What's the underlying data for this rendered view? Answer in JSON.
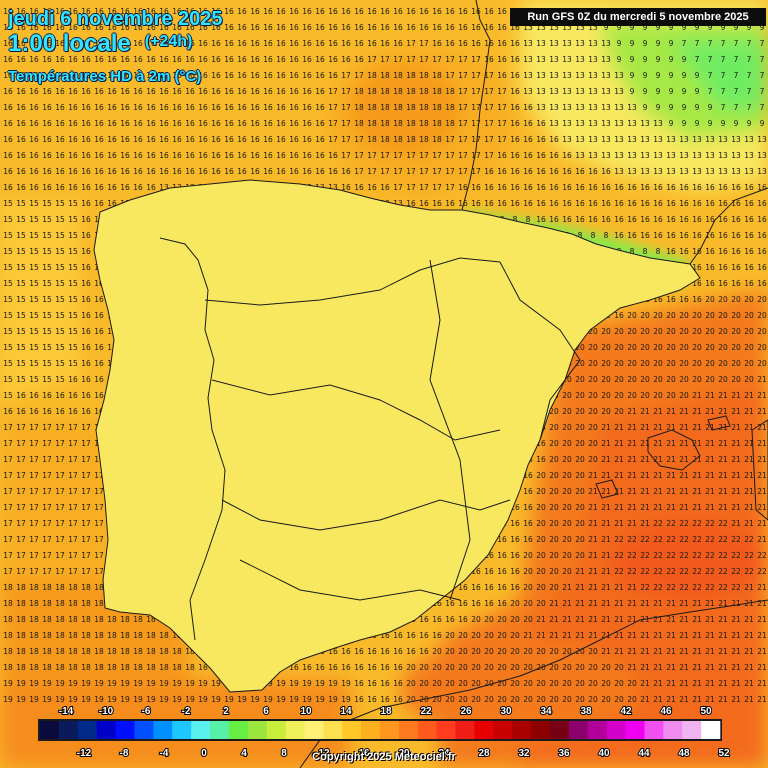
{
  "header": {
    "date": "jeudi 6 novembre 2025",
    "time": "1:00 locale",
    "lead": "(+24h)",
    "parameter": "Températures HD à 2m (°C)"
  },
  "run_info": "Run GFS 0Z du mercredi 5 novembre 2025",
  "copyright": "Copyright 2025 Meteociel.fr",
  "legend": {
    "top_labels": [
      "-14",
      "-10",
      "-6",
      "-2",
      "2",
      "6",
      "10",
      "14",
      "18",
      "22",
      "26",
      "30",
      "34",
      "38",
      "42",
      "46",
      "50"
    ],
    "bottom_labels": [
      "-12",
      "-8",
      "-4",
      "0",
      "4",
      "8",
      "12",
      "16",
      "20",
      "24",
      "28",
      "32",
      "36",
      "40",
      "44",
      "48",
      "52"
    ],
    "colors": [
      "#0a0a3c",
      "#0a1a5a",
      "#002a8a",
      "#0000c8",
      "#0010ff",
      "#0050ff",
      "#0090ff",
      "#1ec8ff",
      "#5af0f0",
      "#58f0a8",
      "#66ee44",
      "#9ae63c",
      "#c8ee3c",
      "#f0f05a",
      "#fff078",
      "#ffe050",
      "#ffc828",
      "#ffb01e",
      "#ff961e",
      "#ff7a1e",
      "#ff5a1e",
      "#ff3c1e",
      "#f01e14",
      "#e60000",
      "#c80000",
      "#aa0000",
      "#8c0000",
      "#780014",
      "#8c006e",
      "#b4009a",
      "#d200c8",
      "#f000f0",
      "#f050f0",
      "#f08cf0",
      "#f0b4f0",
      "#ffffff"
    ]
  },
  "map": {
    "region": "Spain, Portugal and western Mediterranean",
    "colors": {
      "t5": "#5ae696",
      "t6": "#62ea82",
      "t7": "#70ec62",
      "t8": "#86ea4a",
      "t9": "#a6e844",
      "t10": "#c4ec44",
      "t11": "#dcee4c",
      "t12": "#eeee56",
      "t13": "#f8e860",
      "t14": "#fcdc50",
      "t15": "#fbc838",
      "t16": "#f9ba2a",
      "t17": "#f8ae22",
      "t18": "#f69a1e",
      "t19": "#f58c1c",
      "t20": "#f47a1c",
      "t21": "#f36a1c",
      "t22": "#f25a1e",
      "border": "#1a1a1a",
      "numbers": "#1a1a1a"
    }
  }
}
